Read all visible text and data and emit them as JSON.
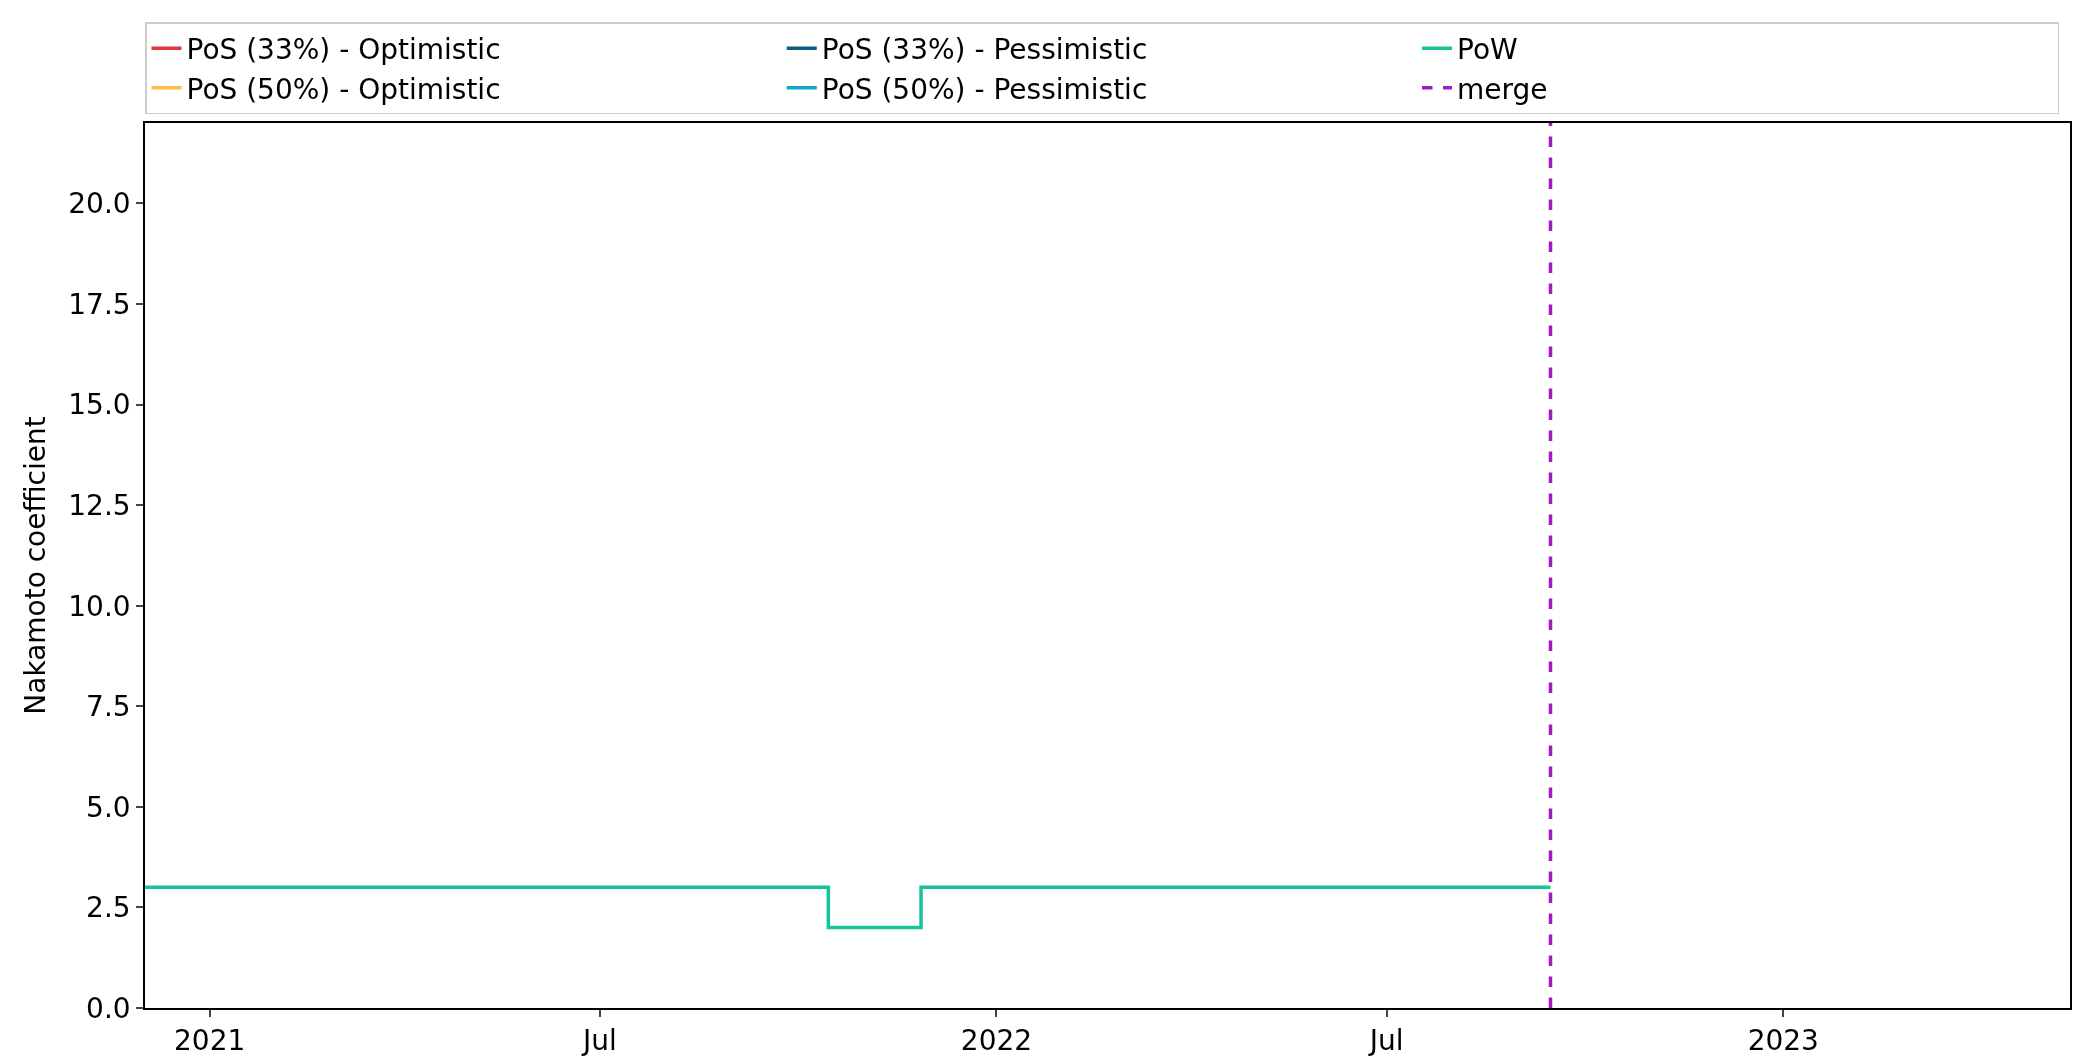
{
  "chart_data": {
    "type": "step",
    "ylabel": "Nakamoto coefficient",
    "series": [
      {
        "name": "PoS (33%) - Optimistic",
        "color": "#e0383e"
      },
      {
        "name": "PoS (33%) - Pessimistic",
        "color": "#0b5d8a"
      },
      {
        "name": "PoW",
        "color": "#17c49a",
        "x": [
          "2020-12-02",
          "2021-10-15",
          "2021-11-27",
          "2022-09-15"
        ],
        "values": [
          3,
          2,
          3,
          3
        ]
      },
      {
        "name": "PoS (50%) - Optimistic",
        "color": "#ffbc4a"
      },
      {
        "name": "PoS (50%) - Pessimistic",
        "color": "#11a6c8"
      }
    ],
    "ref_lines": [
      {
        "axis": "x",
        "value": "2022-09-15",
        "label": "merge",
        "color": "#a01cc0",
        "line_style": "dashed"
      }
    ],
    "xlim": [
      "2020-12-02",
      "2023-05-14"
    ],
    "xticks": [
      {
        "value": "2021-01-01",
        "label": "2021"
      },
      {
        "value": "2021-07-01",
        "label": "Jul"
      },
      {
        "value": "2022-01-01",
        "label": "2022"
      },
      {
        "value": "2022-07-01",
        "label": "Jul"
      },
      {
        "value": "2023-01-01",
        "label": "2023"
      }
    ],
    "ylim": [
      0,
      22
    ],
    "yticks": [
      {
        "value": 0,
        "label": "0.0"
      },
      {
        "value": 2.5,
        "label": "2.5"
      },
      {
        "value": 5,
        "label": "5.0"
      },
      {
        "value": 7.5,
        "label": "7.5"
      },
      {
        "value": 10,
        "label": "10.0"
      },
      {
        "value": 12.5,
        "label": "12.5"
      },
      {
        "value": 15,
        "label": "15.0"
      },
      {
        "value": 17.5,
        "label": "17.5"
      },
      {
        "value": 20,
        "label": "20.0"
      }
    ],
    "legend": "top"
  }
}
